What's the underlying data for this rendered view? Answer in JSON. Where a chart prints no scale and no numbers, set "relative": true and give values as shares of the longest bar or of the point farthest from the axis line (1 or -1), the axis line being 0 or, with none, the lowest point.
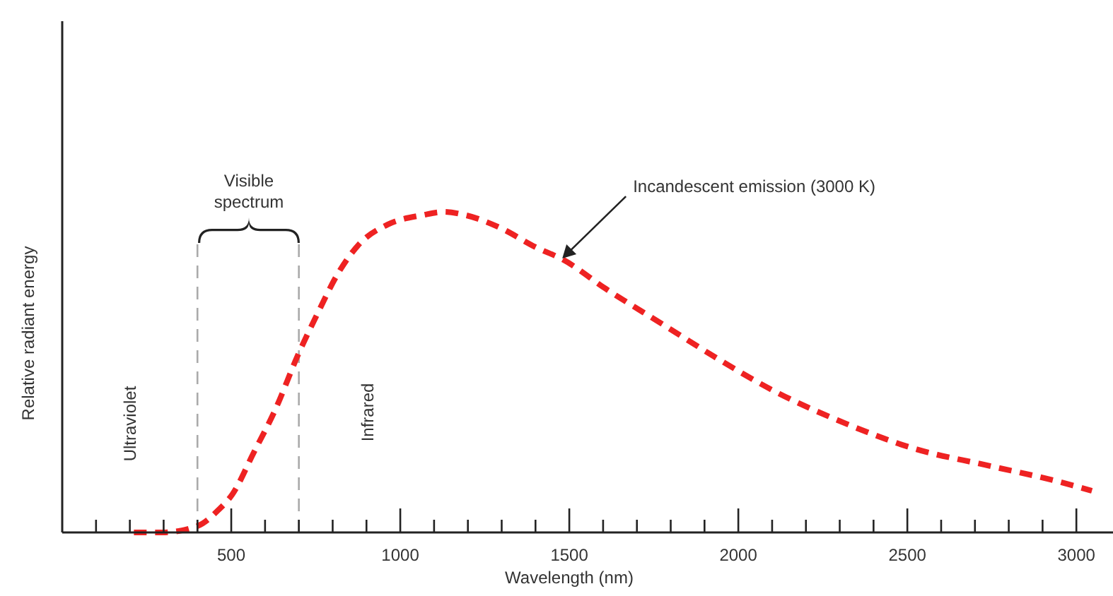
{
  "chart_data": {
    "type": "line",
    "relative": true,
    "xlabel": "Wavelength (nm)",
    "ylabel": "Relative radiant energy",
    "xlim": [
      0,
      3100
    ],
    "xticks": [
      {
        "value": 100,
        "label": null
      },
      {
        "value": 200,
        "label": null
      },
      {
        "value": 300,
        "label": null
      },
      {
        "value": 400,
        "label": null
      },
      500,
      {
        "value": 600,
        "label": null
      },
      {
        "value": 700,
        "label": null
      },
      {
        "value": 800,
        "label": null
      },
      {
        "value": 900,
        "label": null
      },
      1000,
      {
        "value": 1100,
        "label": null
      },
      {
        "value": 1200,
        "label": null
      },
      {
        "value": 1300,
        "label": null
      },
      {
        "value": 1400,
        "label": null
      },
      1500,
      {
        "value": 1600,
        "label": null
      },
      {
        "value": 1700,
        "label": null
      },
      {
        "value": 1800,
        "label": null
      },
      {
        "value": 1900,
        "label": null
      },
      2000,
      {
        "value": 2100,
        "label": null
      },
      {
        "value": 2200,
        "label": null
      },
      {
        "value": 2300,
        "label": null
      },
      {
        "value": 2400,
        "label": null
      },
      2500,
      {
        "value": 2600,
        "label": null
      },
      {
        "value": 2700,
        "label": null
      },
      {
        "value": 2800,
        "label": null
      },
      {
        "value": 2900,
        "label": null
      },
      3000
    ],
    "grid": false,
    "marker": "none",
    "line_style": "dashed",
    "series": [
      {
        "color": "#ee2222",
        "x": [
          212,
          296,
          400,
          462,
          504,
          567,
          629,
          700,
          754,
          817,
          879,
          962,
          1067,
          1129,
          1192,
          1296,
          1400,
          1483,
          1608,
          1775,
          1942,
          2108,
          2317,
          2525,
          2733,
          2942,
          3046
        ],
        "values": [
          0,
          0,
          0.02,
          0.07,
          0.12,
          0.25,
          0.38,
          0.56,
          0.68,
          0.81,
          0.9,
          0.96,
          0.99,
          1,
          0.99,
          0.95,
          0.89,
          0.85,
          0.76,
          0.65,
          0.54,
          0.44,
          0.34,
          0.26,
          0.21,
          0.16,
          0.13
        ]
      }
    ],
    "ref_lines": [
      {
        "axis": "x",
        "value": 400,
        "color": "#aaaaaa",
        "line_style": "dashed"
      },
      {
        "axis": "x",
        "value": 700,
        "color": "#aaaaaa",
        "line_style": "dashed"
      }
    ],
    "annotations": [
      {
        "text": "Incandescent emission (3000 K)",
        "x": 1475,
        "y": 0.85
      },
      {
        "text": "Visible spectrum"
      },
      "Ultraviolet",
      "Infrared"
    ]
  }
}
